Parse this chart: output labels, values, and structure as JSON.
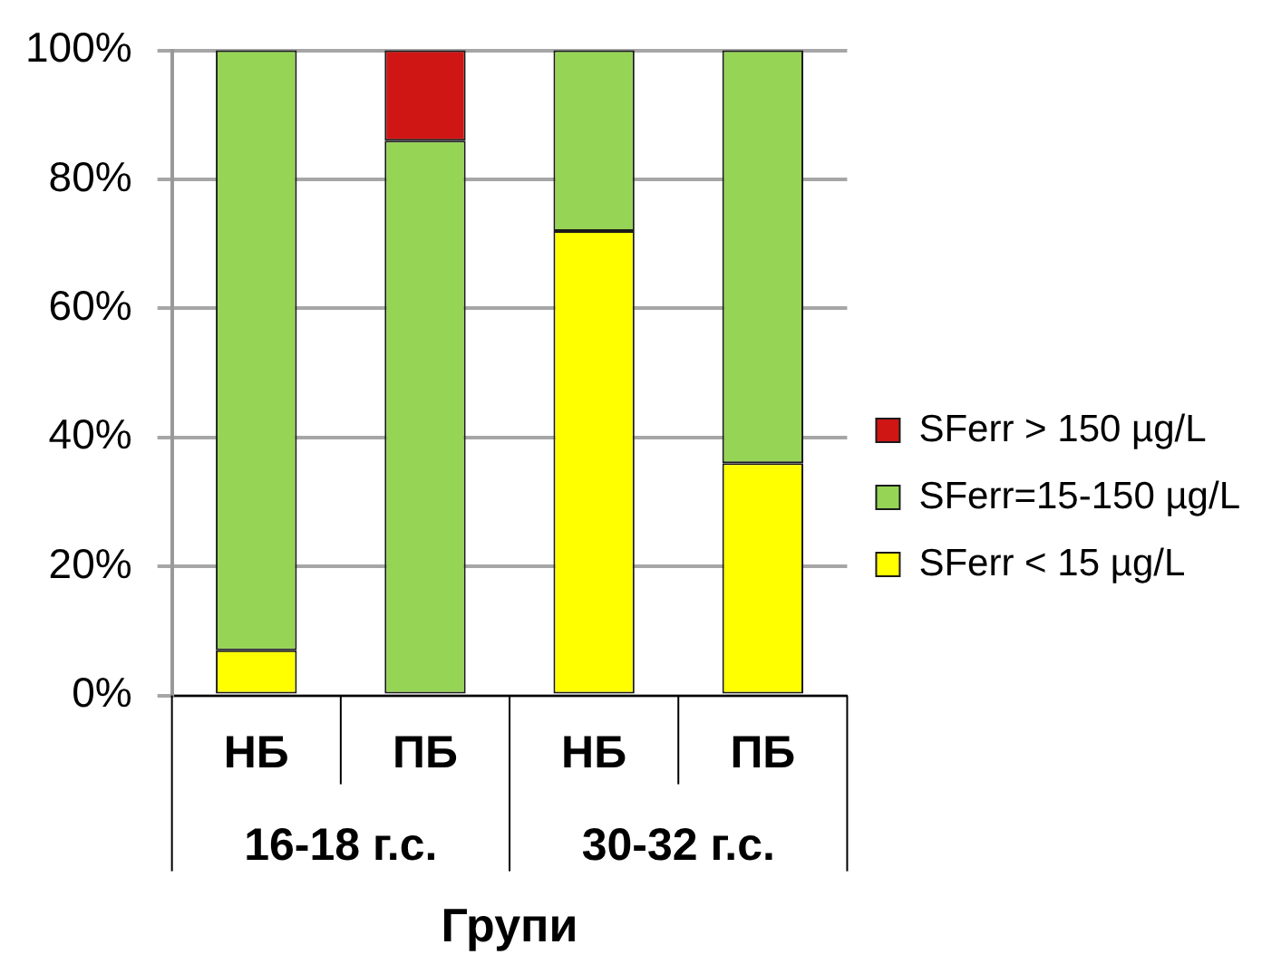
{
  "chart_data": {
    "type": "bar",
    "xlabel": "Групи",
    "categories": [
      "НБ",
      "ПБ",
      "НБ",
      "ПБ"
    ],
    "annotations": [
      "16-18 г.с.",
      "30-32 г.с."
    ],
    "stacked": true,
    "series": [
      {
        "name": "SFerr < 15 µg/L",
        "color": "#ffff00",
        "values": [
          7,
          0,
          72,
          36
        ]
      },
      {
        "name": "SFerr=15-150 µg/L",
        "color": "#96d455",
        "values": [
          93,
          86,
          28,
          64
        ]
      },
      {
        "name": "SFerr > 150 µg/L",
        "color": "#d01515",
        "values": [
          0,
          14,
          0,
          0
        ]
      }
    ],
    "ylim": [
      0,
      100
    ],
    "yticks": [
      {
        "value": 0,
        "label": "0%"
      },
      {
        "value": 20,
        "label": "20%"
      },
      {
        "value": 40,
        "label": "40%"
      },
      {
        "value": 60,
        "label": "60%"
      },
      {
        "value": 80,
        "label": "80%"
      },
      {
        "value": 100,
        "label": "100%"
      }
    ],
    "grid": "y",
    "legend": "right"
  }
}
